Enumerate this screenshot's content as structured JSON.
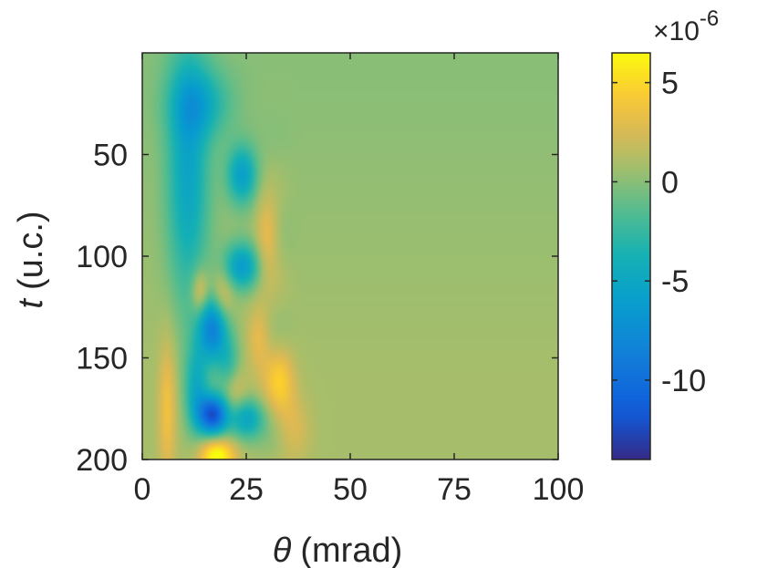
{
  "chart_data": {
    "type": "heatmap",
    "title": "",
    "xlabel": {
      "symbol": "θ",
      "unit": "(mrad)"
    },
    "ylabel": {
      "symbol": "t",
      "unit": "(u.c.)"
    },
    "xlim": [
      0,
      100
    ],
    "ylim": [
      0,
      200
    ],
    "y_reversed": true,
    "x_ticks": [
      0,
      25,
      50,
      75,
      100
    ],
    "y_ticks": [
      50,
      100,
      150,
      200
    ],
    "x_tick_labels": [
      "0",
      "25",
      "50",
      "75",
      "100"
    ],
    "y_tick_labels": [
      "50",
      "100",
      "150",
      "200"
    ],
    "colorbar": {
      "range": [
        -14,
        6.5
      ],
      "ticks": [
        5,
        0,
        -5,
        -10
      ],
      "tick_labels": [
        "5",
        "0",
        "-5",
        "-10"
      ],
      "exponent": {
        "base": "×10",
        "power": "-6"
      },
      "colormap": "parula"
    },
    "grid": false,
    "features": [
      {
        "theta": 11,
        "t": 60,
        "value": -5.5,
        "sx": 3.5,
        "sy": 45
      },
      {
        "theta": 14,
        "t": 25,
        "value": -4,
        "sx": 5,
        "sy": 12
      },
      {
        "theta": 24,
        "t": 60,
        "value": -6,
        "sx": 2.5,
        "sy": 10
      },
      {
        "theta": 24,
        "t": 105,
        "value": -6.5,
        "sx": 3,
        "sy": 8
      },
      {
        "theta": 17,
        "t": 135,
        "value": -9,
        "sx": 2.5,
        "sy": 12
      },
      {
        "theta": 17,
        "t": 178,
        "value": -12.5,
        "sx": 2.5,
        "sy": 7
      },
      {
        "theta": 25,
        "t": 180,
        "value": -6,
        "sx": 3,
        "sy": 7
      },
      {
        "theta": 13,
        "t": 165,
        "value": -5,
        "sx": 2,
        "sy": 15
      },
      {
        "theta": 21,
        "t": 155,
        "value": -4,
        "sx": 2,
        "sy": 10
      },
      {
        "theta": 14,
        "t": 118,
        "value": 4,
        "sx": 1.5,
        "sy": 8
      },
      {
        "theta": 19,
        "t": 120,
        "value": 3.5,
        "sx": 2,
        "sy": 9
      },
      {
        "theta": 18,
        "t": 198,
        "value": 6.3,
        "sx": 3,
        "sy": 6
      },
      {
        "theta": 22,
        "t": 165,
        "value": 3,
        "sx": 2,
        "sy": 10
      },
      {
        "theta": 30,
        "t": 90,
        "value": 3,
        "sx": 2,
        "sy": 15
      },
      {
        "theta": 33,
        "t": 160,
        "value": 3,
        "sx": 2.5,
        "sy": 12
      },
      {
        "theta": 28,
        "t": 140,
        "value": 2.5,
        "sx": 2,
        "sy": 12
      },
      {
        "theta": 36,
        "t": 185,
        "value": 2,
        "sx": 3,
        "sy": 12
      },
      {
        "theta": 6,
        "t": 175,
        "value": 3,
        "sx": 1.5,
        "sy": 25
      }
    ]
  }
}
